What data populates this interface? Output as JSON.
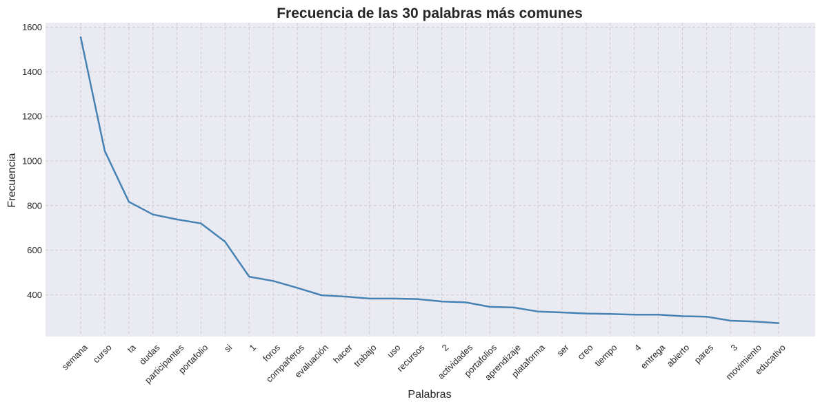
{
  "chart_data": {
    "type": "line",
    "title": "Frecuencia de las 30 palabras más comunes",
    "xlabel": "Palabras",
    "ylabel": "Frecuencia",
    "categories": [
      "semana",
      "curso",
      "ta",
      "dudas",
      "participantes",
      "portafolio",
      "si",
      "1",
      "foros",
      "compañeros",
      "evaluación",
      "hacer",
      "trabajo",
      "uso",
      "recursos",
      "2",
      "actividades",
      "portafolios",
      "aprendizaje",
      "plataforma",
      "ser",
      "creo",
      "tiempo",
      "4",
      "entrega",
      "abierto",
      "pares",
      "3",
      "movimiento",
      "educativo"
    ],
    "values": [
      1555,
      1045,
      817,
      760,
      738,
      720,
      638,
      481,
      462,
      431,
      398,
      392,
      383,
      383,
      381,
      370,
      366,
      346,
      343,
      325,
      321,
      316,
      314,
      311,
      311,
      304,
      302,
      284,
      280,
      273
    ],
    "ylim": [
      213,
      1620
    ],
    "yticks": [
      400,
      600,
      800,
      1000,
      1200,
      1400,
      1600
    ],
    "grid": true,
    "line_color": "#4682b4",
    "background": "#eaeaf2"
  }
}
